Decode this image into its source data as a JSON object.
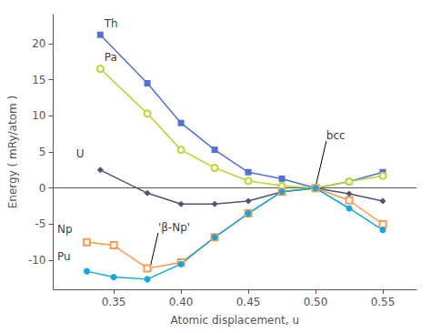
{
  "chart_data": {
    "type": "line",
    "xlabel": "Atomic displacement, u",
    "ylabel": "Energy ( mRy/atom )",
    "xlim": [
      0.305,
      0.575
    ],
    "ylim": [
      -14,
      24
    ],
    "xticks": [
      0.35,
      {
        "value": 0.4,
        "label": "0.40"
      },
      0.45,
      {
        "value": 0.5,
        "label": "0.50"
      },
      0.55
    ],
    "yticks": [
      -10,
      -5,
      0,
      5,
      10,
      15,
      20
    ],
    "grid": false,
    "series": [
      {
        "name": "Th",
        "marker": "square",
        "x": [
          0.34,
          0.375,
          0.4,
          0.425,
          0.45,
          0.475,
          0.5,
          0.525,
          0.55
        ],
        "values": [
          21.2,
          14.5,
          9.0,
          5.3,
          2.2,
          1.3,
          0.0,
          0.9,
          2.2
        ]
      },
      {
        "name": "Pa",
        "marker": "open_circle",
        "x": [
          0.34,
          0.375,
          0.4,
          0.425,
          0.45,
          0.475,
          0.5,
          0.525,
          0.55
        ],
        "values": [
          16.5,
          10.3,
          5.3,
          2.8,
          1.0,
          0.3,
          0.0,
          0.9,
          1.7
        ]
      },
      {
        "name": "U",
        "marker": "diamond",
        "x": [
          0.34,
          0.375,
          0.4,
          0.425,
          0.45,
          0.475,
          0.5,
          0.525,
          0.55
        ],
        "values": [
          2.5,
          -0.7,
          -2.2,
          -2.2,
          -1.8,
          -0.5,
          0.0,
          -0.8,
          -1.8
        ]
      },
      {
        "name": "Np",
        "marker": "open_square",
        "x": [
          0.33,
          0.35,
          0.375,
          0.4,
          0.425,
          0.45,
          0.475,
          0.5,
          0.525,
          0.55
        ],
        "values": [
          -7.5,
          -7.9,
          -11.1,
          -10.3,
          -6.8,
          -3.5,
          -0.5,
          0.0,
          -1.7,
          -5.0
        ]
      },
      {
        "name": "Pu",
        "marker": "circle",
        "x": [
          0.33,
          0.35,
          0.375,
          0.4,
          0.425,
          0.45,
          0.475,
          0.5,
          0.525,
          0.55
        ],
        "values": [
          -11.5,
          -12.3,
          -12.6,
          -10.5,
          -6.8,
          -3.5,
          -0.5,
          0.0,
          -2.8,
          -5.8
        ]
      }
    ],
    "hlines": [
      {
        "y": 0,
        "color": "#555555"
      }
    ],
    "annotations": [
      {
        "text": "Th",
        "x": 0.343,
        "y": 22.0,
        "color": "black"
      },
      {
        "text": "Pa",
        "x": 0.343,
        "y": 17.3,
        "color": "black"
      },
      {
        "text": "U",
        "x": 0.322,
        "y": 4.0,
        "color": "black"
      },
      {
        "text": "Np",
        "x": 0.308,
        "y": -6.5,
        "color": "black"
      },
      {
        "text": "Pu",
        "x": 0.308,
        "y": -10.2,
        "color": "black"
      },
      {
        "text": "bcc",
        "x": 0.508,
        "y": 6.5,
        "arrow_x": 0.5,
        "arrow_y": 0.15,
        "color": "black"
      },
      {
        "text": "'β-Np'",
        "x": 0.383,
        "y": -6.2,
        "arrow_x": 0.377,
        "arrow_y": -11.0,
        "color": "black"
      }
    ]
  }
}
